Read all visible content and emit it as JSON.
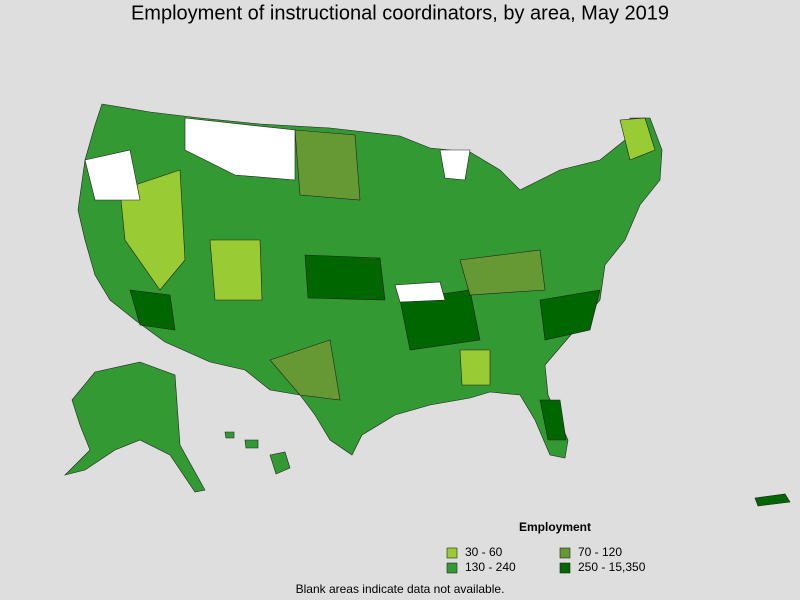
{
  "title": "Employment of instructional coordinators, by area, May 2019",
  "legend": {
    "title": "Employment",
    "items": [
      {
        "label": "30 - 60",
        "color": "#99cc33"
      },
      {
        "label": "70 - 120",
        "color": "#669933"
      },
      {
        "label": "130 - 240",
        "color": "#339933"
      },
      {
        "label": "250 - 15,350",
        "color": "#006600"
      }
    ]
  },
  "note": "Blank areas indicate data not available."
}
